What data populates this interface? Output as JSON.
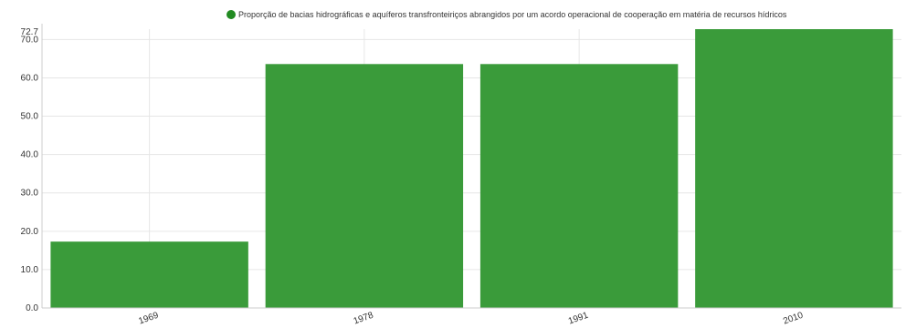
{
  "chart_data": {
    "type": "bar",
    "categories": [
      "1969",
      "1978",
      "1991",
      "2010"
    ],
    "series": [
      {
        "name": "Proporção de bacias hidrográficas e aquíferos transfronteiriços abrangidos por um acordo operacional de cooperação em matéria de recursos hídricos",
        "values": [
          17.3,
          63.6,
          63.6,
          72.7
        ],
        "color": "#3a9b3a"
      }
    ],
    "ylim": [
      0,
      72.7
    ],
    "yticks": [
      "0.0",
      "10.0",
      "20.0",
      "30.0",
      "40.0",
      "50.0",
      "60.0",
      "70.0"
    ],
    "ymax_label": "72.7",
    "legend_position": "top-right",
    "grid": true
  }
}
